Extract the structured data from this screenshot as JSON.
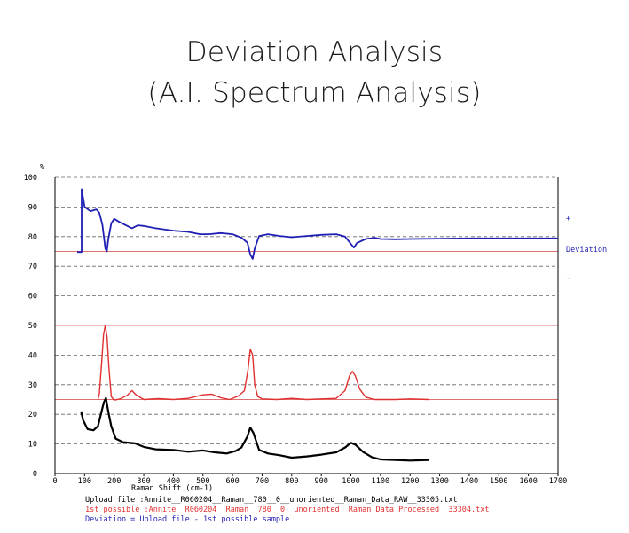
{
  "title_lines": [
    "Deviation Analysis",
    "(A.I. Spectrum Analysis)"
  ],
  "chart_data": {
    "type": "line",
    "xlabel": "Raman Shift (cm-1)",
    "ylabel": "%",
    "xlim": [
      0,
      1700
    ],
    "ylim": [
      0,
      100
    ],
    "x_ticks": [
      0,
      100,
      200,
      300,
      400,
      500,
      600,
      700,
      800,
      900,
      1000,
      1100,
      1200,
      1300,
      1400,
      1500,
      1600,
      1700
    ],
    "y_ticks": [
      0,
      10,
      20,
      30,
      40,
      50,
      60,
      70,
      80,
      90,
      100
    ],
    "grid": "dashed horizontal",
    "deviation_labels": {
      "plus": "+",
      "center": "Deviation",
      "minus": "-"
    },
    "reference_lines": [
      {
        "y": 75,
        "color": "#e07070"
      },
      {
        "y": 50,
        "color": "#e07070"
      },
      {
        "y": 25,
        "color": "#e07070"
      }
    ],
    "series": [
      {
        "role": "deviation",
        "color": "#1f1fb4",
        "points": [
          [
            75,
            74.8
          ],
          [
            90,
            74.8
          ],
          [
            90,
            96
          ],
          [
            100,
            90
          ],
          [
            120,
            88.6
          ],
          [
            140,
            89.2
          ],
          [
            150,
            88
          ],
          [
            160,
            84
          ],
          [
            170,
            76
          ],
          [
            175,
            75
          ],
          [
            180,
            79
          ],
          [
            190,
            84.5
          ],
          [
            200,
            86
          ],
          [
            220,
            84.8
          ],
          [
            240,
            83.8
          ],
          [
            260,
            82.8
          ],
          [
            280,
            83.8
          ],
          [
            300,
            83.6
          ],
          [
            340,
            82.8
          ],
          [
            400,
            82
          ],
          [
            450,
            81.6
          ],
          [
            490,
            80.8
          ],
          [
            520,
            80.8
          ],
          [
            560,
            81.2
          ],
          [
            600,
            80.8
          ],
          [
            630,
            79.6
          ],
          [
            650,
            78
          ],
          [
            660,
            74
          ],
          [
            668,
            72.5
          ],
          [
            675,
            76
          ],
          [
            690,
            80.2
          ],
          [
            720,
            80.8
          ],
          [
            760,
            80.2
          ],
          [
            800,
            79.8
          ],
          [
            850,
            80.2
          ],
          [
            900,
            80.6
          ],
          [
            950,
            80.8
          ],
          [
            980,
            80
          ],
          [
            1000,
            77.5
          ],
          [
            1010,
            76.3
          ],
          [
            1020,
            77.8
          ],
          [
            1050,
            79.2
          ],
          [
            1080,
            79.6
          ],
          [
            1100,
            79.2
          ],
          [
            1150,
            79.1
          ],
          [
            1200,
            79.2
          ],
          [
            1300,
            79.3
          ],
          [
            1400,
            79.4
          ],
          [
            1500,
            79.4
          ],
          [
            1600,
            79.4
          ],
          [
            1700,
            79.4
          ]
        ]
      },
      {
        "role": "1st possible",
        "color": "#e03030",
        "points": [
          [
            145,
            25
          ],
          [
            150,
            27
          ],
          [
            158,
            38
          ],
          [
            164,
            47
          ],
          [
            170,
            50
          ],
          [
            176,
            46
          ],
          [
            182,
            36
          ],
          [
            190,
            26
          ],
          [
            200,
            24.8
          ],
          [
            220,
            25.2
          ],
          [
            245,
            26.5
          ],
          [
            260,
            28
          ],
          [
            275,
            26.5
          ],
          [
            300,
            25
          ],
          [
            350,
            25.3
          ],
          [
            400,
            25
          ],
          [
            450,
            25.4
          ],
          [
            500,
            26.6
          ],
          [
            530,
            26.8
          ],
          [
            560,
            25.6
          ],
          [
            590,
            25
          ],
          [
            620,
            26.2
          ],
          [
            640,
            28
          ],
          [
            652,
            35
          ],
          [
            660,
            42
          ],
          [
            668,
            40
          ],
          [
            675,
            30
          ],
          [
            685,
            26
          ],
          [
            700,
            25.2
          ],
          [
            750,
            25
          ],
          [
            800,
            25.4
          ],
          [
            850,
            25
          ],
          [
            900,
            25.2
          ],
          [
            950,
            25.4
          ],
          [
            980,
            28
          ],
          [
            995,
            33
          ],
          [
            1005,
            34.5
          ],
          [
            1015,
            33
          ],
          [
            1030,
            28.5
          ],
          [
            1050,
            25.8
          ],
          [
            1080,
            25
          ],
          [
            1150,
            25
          ],
          [
            1200,
            25.2
          ],
          [
            1265,
            25
          ]
        ]
      },
      {
        "role": "upload",
        "color": "#000000",
        "points": [
          [
            88,
            21
          ],
          [
            95,
            18
          ],
          [
            110,
            15
          ],
          [
            130,
            14.6
          ],
          [
            145,
            16
          ],
          [
            155,
            20
          ],
          [
            165,
            24
          ],
          [
            172,
            25.5
          ],
          [
            180,
            21
          ],
          [
            190,
            16
          ],
          [
            205,
            11.8
          ],
          [
            230,
            10.6
          ],
          [
            270,
            10.2
          ],
          [
            300,
            9
          ],
          [
            340,
            8.2
          ],
          [
            400,
            8
          ],
          [
            450,
            7.4
          ],
          [
            500,
            7.8
          ],
          [
            540,
            7.2
          ],
          [
            580,
            6.8
          ],
          [
            610,
            7.6
          ],
          [
            630,
            8.8
          ],
          [
            650,
            12.5
          ],
          [
            660,
            15.5
          ],
          [
            670,
            13.8
          ],
          [
            690,
            8
          ],
          [
            720,
            6.8
          ],
          [
            760,
            6.2
          ],
          [
            800,
            5.4
          ],
          [
            850,
            5.8
          ],
          [
            900,
            6.4
          ],
          [
            950,
            7.2
          ],
          [
            980,
            8.8
          ],
          [
            1000,
            10.4
          ],
          [
            1015,
            9.8
          ],
          [
            1040,
            7.4
          ],
          [
            1070,
            5.6
          ],
          [
            1100,
            4.8
          ],
          [
            1150,
            4.6
          ],
          [
            1200,
            4.4
          ],
          [
            1265,
            4.6
          ]
        ]
      }
    ]
  },
  "captions": {
    "upload_file": "Upload file  :Annite__R060204__Raman__780__0__unoriented__Raman_Data_RAW__33305.txt",
    "first_possible": "1st possible :Annite__R060204__Raman__780__0__unoriented__Raman_Data_Processed__33304.txt",
    "deviation_def": "Deviation = Upload file - 1st possible sample"
  },
  "colors": {
    "deviation": "#1f1fb4",
    "first_possible": "#e03030",
    "upload": "#000000",
    "reference": "#e07070",
    "grid": "#666666"
  }
}
